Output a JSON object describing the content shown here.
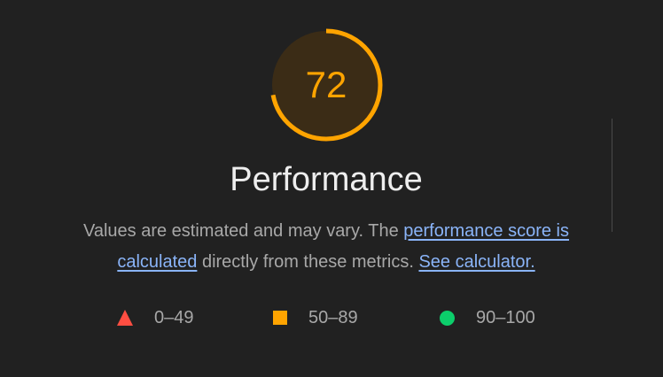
{
  "gauge": {
    "score": "72",
    "score_fraction": 0.72,
    "color": "#ffa400",
    "track_color": "#3b2c16"
  },
  "title": "Performance",
  "description": {
    "text_before": "Values are estimated and may vary. The ",
    "link_score": "performance score is calculated",
    "text_middle": " directly from these metrics. ",
    "link_calculator": "See calculator."
  },
  "legend": {
    "fail": {
      "label": "0–49",
      "icon": "triangle-icon",
      "color": "#ff4e42"
    },
    "average": {
      "label": "50–89",
      "icon": "square-icon",
      "color": "#ffa400"
    },
    "pass": {
      "label": "90–100",
      "icon": "circle-icon",
      "color": "#0cce6b"
    }
  }
}
